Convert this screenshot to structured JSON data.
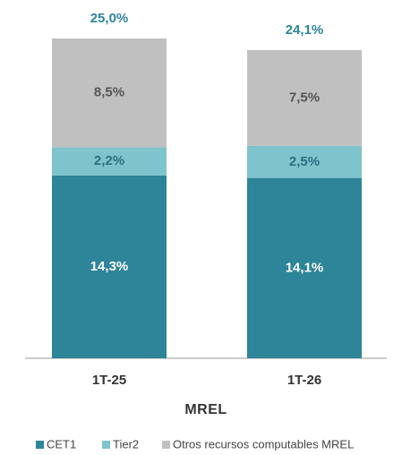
{
  "chart_data": {
    "type": "stacked_bar",
    "x_label": "MREL",
    "categories": [
      "1T-25",
      "1T-26"
    ],
    "series": [
      {
        "name": "CET1",
        "color": "#2e8498",
        "values": [
          14.3,
          14.1
        ],
        "value_labels": [
          "14,3%",
          "14,1%"
        ]
      },
      {
        "name": "Tier2",
        "color": "#7fc4cc",
        "values": [
          2.2,
          2.5
        ],
        "value_labels": [
          "2,2%",
          "2,5%"
        ]
      },
      {
        "name": "Otros recursos computables MREL",
        "color": "#c0c0c0",
        "values": [
          8.5,
          7.5
        ],
        "value_labels": [
          "8,5%",
          "7,5%"
        ]
      }
    ],
    "totals": [
      25.0,
      24.1
    ],
    "total_labels": [
      "25,0%",
      "24,1%"
    ],
    "ylim": [
      0,
      25
    ],
    "legend": "bottom"
  }
}
